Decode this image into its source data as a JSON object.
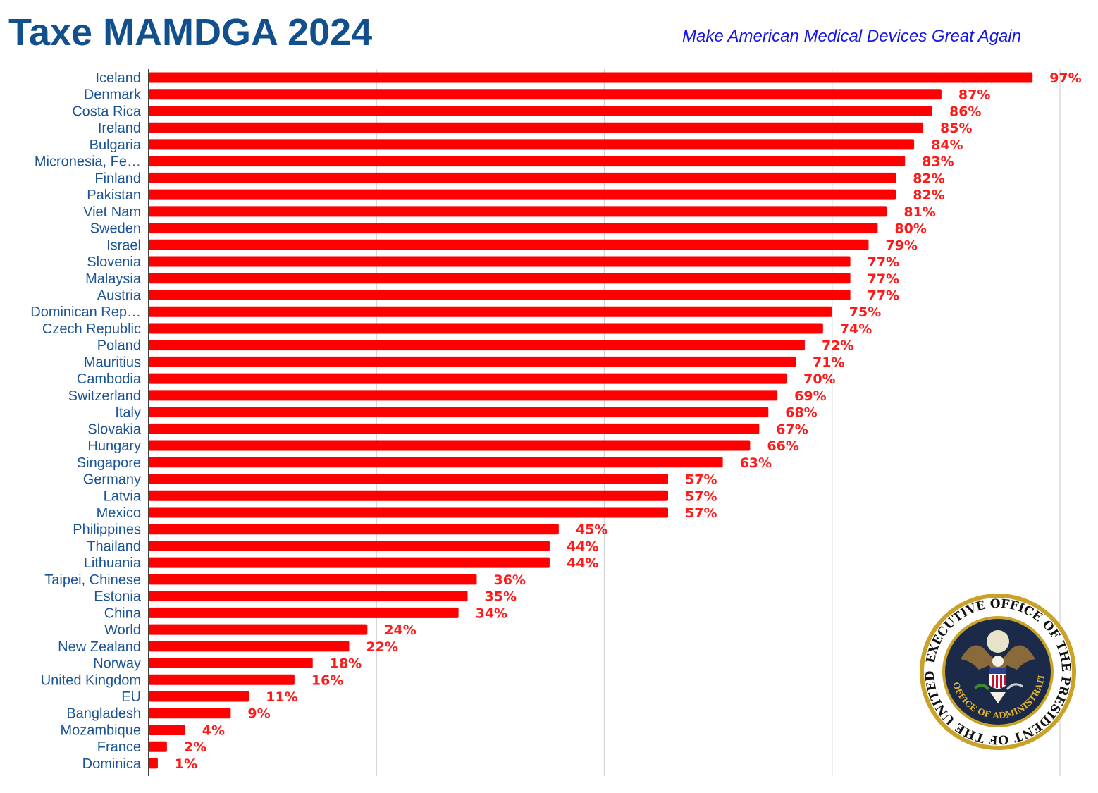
{
  "header": {
    "title": "Taxe MAMDGA 2024",
    "subtitle": "Make American Medical Devices Great Again"
  },
  "seal": {
    "outer_text": "EXECUTIVE OFFICE OF THE PRESIDENT OF THE UNITED STATES",
    "inner_text": "OFFICE OF ADMINISTRATION",
    "colors": {
      "ring": "#c9a227",
      "band": "#ffffff",
      "disc": "#1c2a4a",
      "inner_text": "#e0b32a"
    }
  },
  "chart_data": {
    "type": "bar",
    "orientation": "horizontal",
    "categories": [
      "Iceland",
      "Denmark",
      "Costa Rica",
      "Ireland",
      "Bulgaria",
      "Micronesia, Fe…",
      "Finland",
      "Pakistan",
      "Viet Nam",
      "Sweden",
      "Israel",
      "Slovenia",
      "Malaysia",
      "Austria",
      "Dominican Rep…",
      "Czech Republic",
      "Poland",
      "Mauritius",
      "Cambodia",
      "Switzerland",
      "Italy",
      "Slovakia",
      "Hungary",
      "Singapore",
      "Germany",
      "Latvia",
      "Mexico",
      "Philippines",
      "Thailand",
      "Lithuania",
      "Taipei, Chinese",
      "Estonia",
      "China",
      "World",
      "New Zealand",
      "Norway",
      "United Kingdom",
      "EU",
      "Bangladesh",
      "Mozambique",
      "France",
      "Dominica"
    ],
    "values": [
      97,
      87,
      86,
      85,
      84,
      83,
      82,
      82,
      81,
      80,
      79,
      77,
      77,
      77,
      75,
      74,
      72,
      71,
      70,
      69,
      68,
      67,
      66,
      63,
      57,
      57,
      57,
      45,
      44,
      44,
      36,
      35,
      34,
      24,
      22,
      18,
      16,
      11,
      9,
      4,
      2,
      1
    ],
    "value_labels": [
      "97%",
      "87%",
      "86%",
      "85%",
      "84%",
      "83%",
      "82%",
      "82%",
      "81%",
      "80%",
      "79%",
      "77%",
      "77%",
      "77%",
      "75%",
      "74%",
      "72%",
      "71%",
      "70%",
      "69%",
      "68%",
      "67%",
      "66%",
      "63%",
      "57%",
      "57%",
      "57%",
      "45%",
      "44%",
      "44%",
      "36%",
      "35%",
      "34%",
      "24%",
      "22%",
      "18%",
      "16%",
      "11%",
      "9%",
      "4%",
      "2%",
      "1%"
    ],
    "xlim": [
      0,
      100
    ],
    "gridlines_x": [
      25,
      50,
      75,
      100
    ],
    "grid": true,
    "legend": "none",
    "colors": {
      "bar": "#ff0000",
      "value_label": "#ff1a1a",
      "category_label": "#1b5496",
      "grid": "#d3d3d3",
      "axis": "#000000"
    }
  }
}
